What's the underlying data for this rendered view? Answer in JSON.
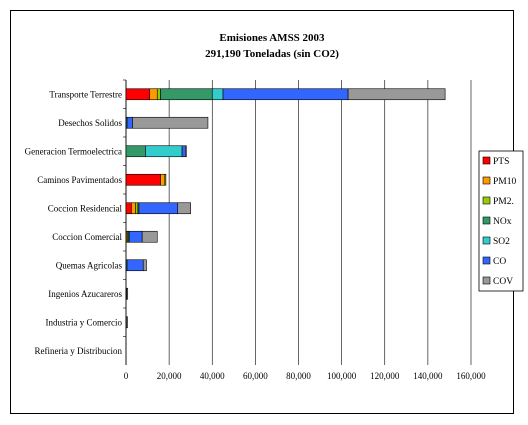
{
  "chart_data": {
    "type": "bar",
    "orientation": "horizontal",
    "stacked": true,
    "title": "Emisiones AMSS 2003",
    "subtitle": "291,190 Toneladas (sin CO2)",
    "categories": [
      "Transporte Terrestre",
      "Desechos Solidos",
      "Generacion Termoelectrica",
      "Caminos Pavimentados",
      "Coccion Residencial",
      "Coccion Comercial",
      "Quemas Agricolas",
      "Ingenios Azucareros",
      "Industria y Comercio",
      "Refineria y Distribucion"
    ],
    "series": [
      {
        "name": "PTS",
        "color": "#ff0000",
        "values": [
          11000,
          0,
          0,
          16000,
          2500,
          0,
          0,
          0,
          0,
          0
        ]
      },
      {
        "name": "PM10",
        "color": "#ff9900",
        "values": [
          3500,
          0,
          0,
          2000,
          2000,
          500,
          0,
          0,
          0,
          0
        ]
      },
      {
        "name": "PM2.",
        "color": "#99cc00",
        "values": [
          1500,
          0,
          0,
          500,
          1000,
          500,
          0,
          0,
          0,
          0
        ]
      },
      {
        "name": "NOx",
        "color": "#339966",
        "values": [
          24000,
          500,
          9000,
          0,
          500,
          500,
          500,
          300,
          200,
          0
        ]
      },
      {
        "name": "SO2",
        "color": "#33cccc",
        "values": [
          5000,
          0,
          17000,
          0,
          0,
          0,
          0,
          0,
          0,
          0
        ]
      },
      {
        "name": "CO",
        "color": "#3366ff",
        "values": [
          58000,
          2500,
          1500,
          0,
          18000,
          6000,
          7500,
          0,
          0,
          0
        ]
      },
      {
        "name": "COV",
        "color": "#999999",
        "values": [
          45000,
          35000,
          500,
          0,
          6000,
          7000,
          1500,
          500,
          500,
          0
        ]
      }
    ],
    "xlim": [
      0,
      160000
    ],
    "xticks": [
      "0",
      "20,000",
      "40,000",
      "60,000",
      "80,000",
      "100,000",
      "120,000",
      "140,000",
      "160,000"
    ],
    "grid": "vertical",
    "legend": "right"
  }
}
